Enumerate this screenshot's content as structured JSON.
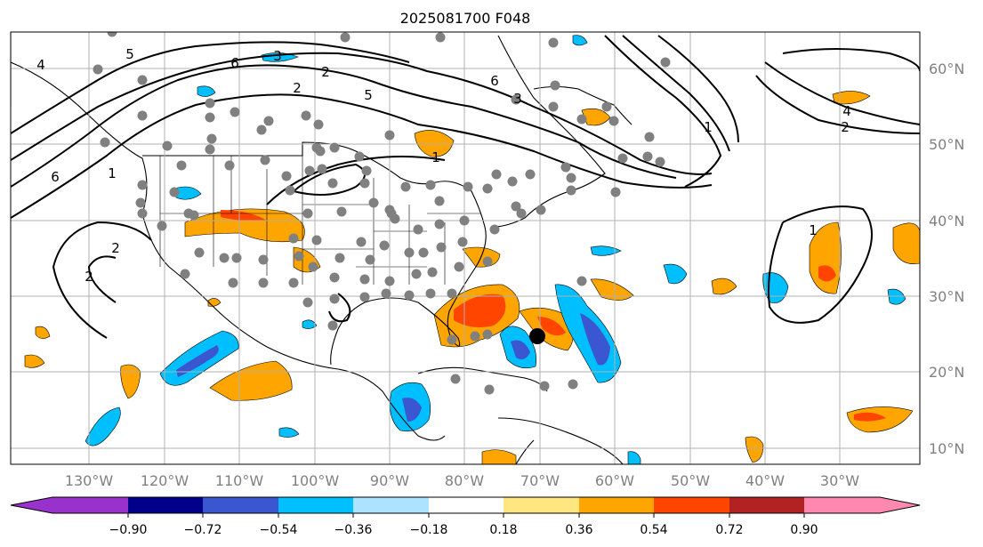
{
  "title": "2025081700 F048",
  "map": {
    "lon_labels": [
      "130°W",
      "120°W",
      "110°W",
      "100°W",
      "90°W",
      "80°W",
      "70°W",
      "60°W",
      "50°W",
      "40°W",
      "30°W"
    ],
    "lat_labels": [
      "60°N",
      "50°N",
      "40°N",
      "30°N",
      "20°N",
      "10°N"
    ],
    "contour_labels": [
      "5",
      "6",
      "3",
      "2",
      "4",
      "5",
      "2",
      "1",
      "1",
      "1",
      "6",
      "2",
      "2",
      "3",
      "4",
      "1",
      "2",
      "6"
    ],
    "colors": {
      "coast": "#000000",
      "grid": "#b0b0b0",
      "contour": "#000000",
      "marker": "#000000",
      "stations": "#808080"
    }
  },
  "colorbar": {
    "ticks": [
      "−0.90",
      "−0.72",
      "−0.54",
      "−0.36",
      "−0.18",
      "0.18",
      "0.36",
      "0.54",
      "0.72",
      "0.90"
    ],
    "colors": [
      "#9932cc",
      "#00008b",
      "#3a56d0",
      "#00bfff",
      "#aee3ff",
      "#ffffff",
      "#ffe680",
      "#ffa500",
      "#ff4500",
      "#b22222",
      "#ff88b0"
    ]
  }
}
